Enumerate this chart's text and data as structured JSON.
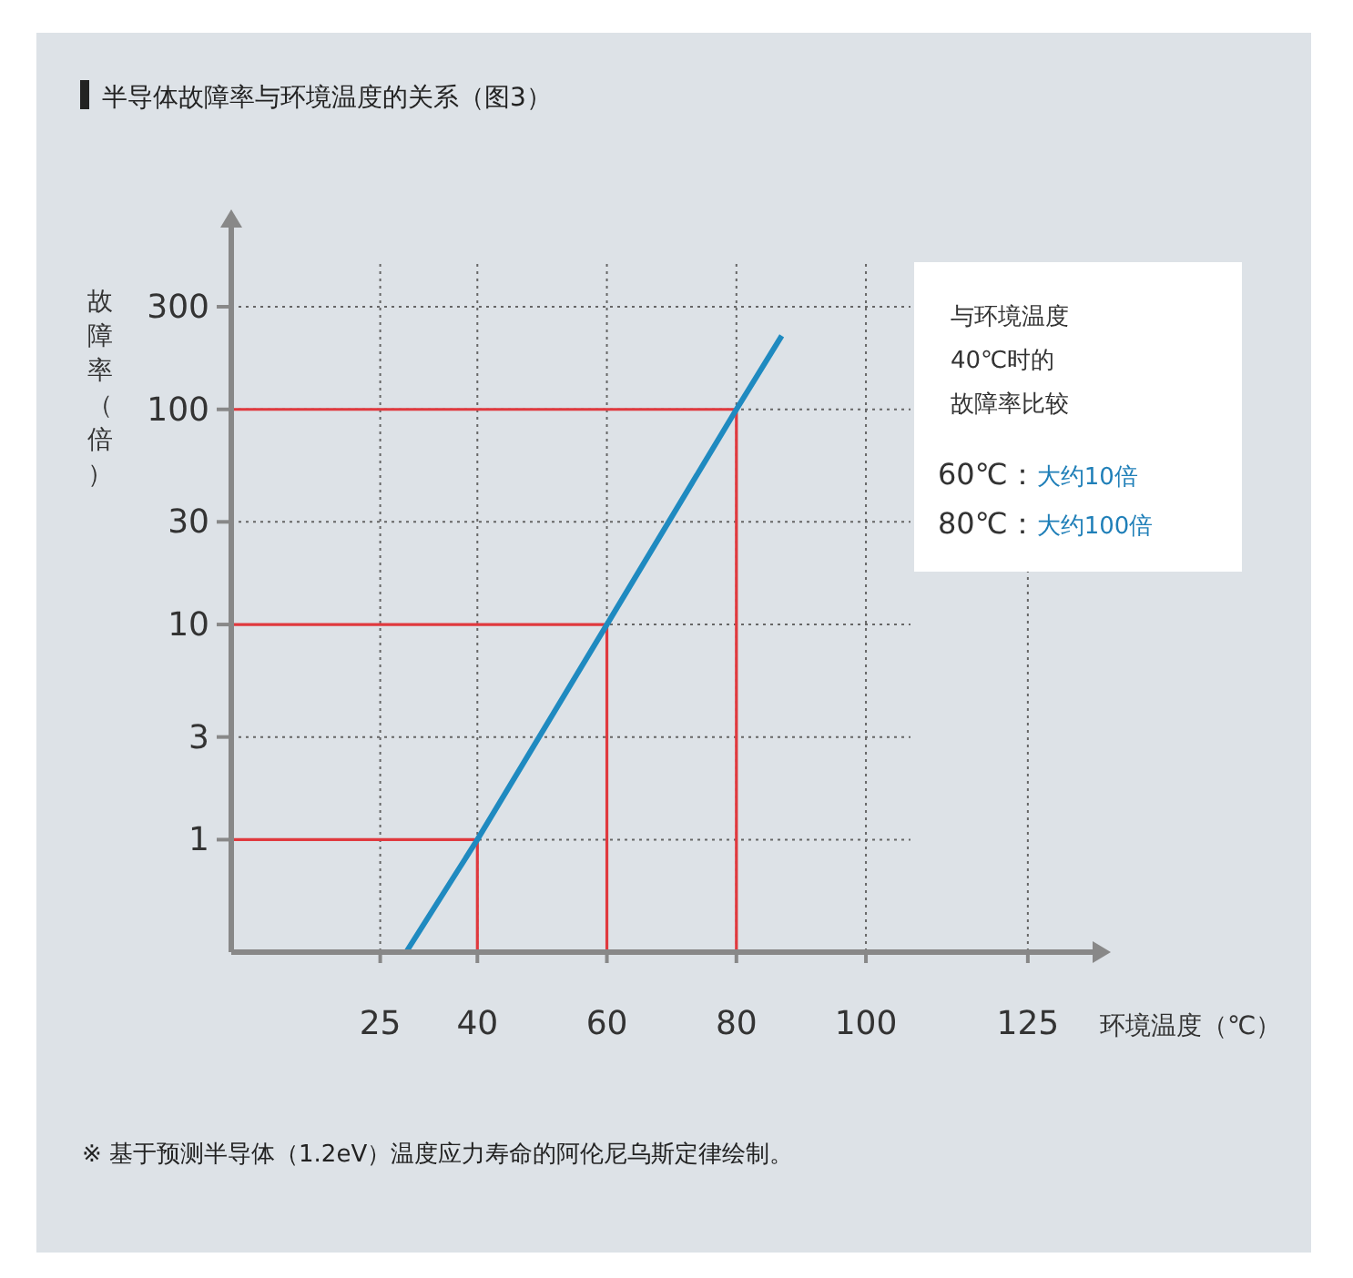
{
  "chart_data": {
    "type": "line",
    "title": "半导体故障率与环境温度的关系（图3）",
    "xlabel": "环境温度（℃）",
    "ylabel": "故障率（倍）",
    "log": "y",
    "xlim": [
      2,
      135
    ],
    "xticks": [
      25,
      40,
      60,
      80,
      100,
      125
    ],
    "ylim": [
      0.3,
      700
    ],
    "yticks": [
      1,
      3,
      10,
      30,
      100,
      300
    ],
    "grid": true,
    "series": [
      {
        "color": "#e0393e",
        "x": [
          2,
          40,
          40
        ],
        "values": [
          1,
          1,
          0.3
        ]
      },
      {
        "color": "#e0393e",
        "x": [
          2,
          60,
          60
        ],
        "values": [
          10,
          10,
          0.3
        ]
      },
      {
        "color": "#e0393e",
        "x": [
          2,
          80,
          80
        ],
        "values": [
          100,
          100,
          0.3
        ]
      },
      {
        "color": "#1f8ac0",
        "x": [
          29,
          40,
          60,
          80,
          87
        ],
        "values": [
          0.3,
          1,
          10,
          100,
          220
        ]
      }
    ],
    "annotations": [
      "与环境温度",
      "40℃时的",
      "故障率比较",
      "60℃：大约10倍",
      "80℃：大约100倍",
      "※ 基于预测半导体（1.2eV）温度应力寿命的阿伦尼乌斯定律绘制。"
    ]
  }
}
